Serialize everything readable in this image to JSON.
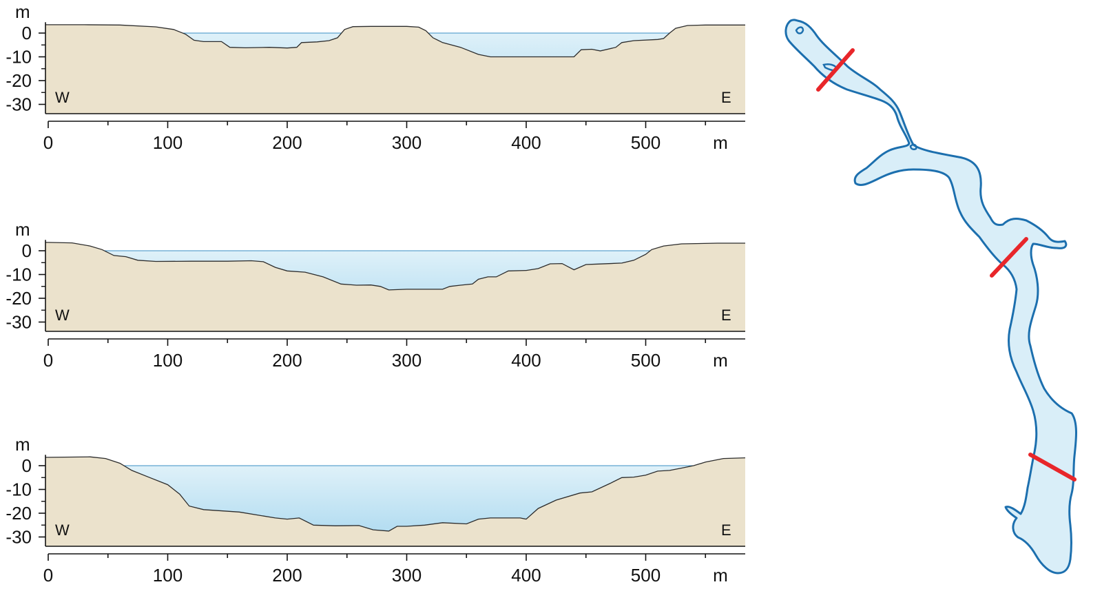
{
  "colors": {
    "land": "#ebe2cc",
    "water_top": "#dff1f9",
    "water_bottom": "#a9d8ef",
    "lake_outline": "#1c6fae",
    "transect": "#e8262a",
    "axis": "#111111"
  },
  "chart_data": [
    {
      "type": "area",
      "xlabel": "m",
      "ylabel": "m",
      "x_ticks": [
        "0",
        "100",
        "200",
        "300",
        "400",
        "500"
      ],
      "y_ticks": [
        "0",
        "-10",
        "-20",
        "-30"
      ],
      "xlim": [
        0,
        585
      ],
      "ylim": [
        -34,
        4
      ],
      "water_level": 0,
      "west_label": "W",
      "east_label": "E",
      "profile": [
        [
          0,
          3.5
        ],
        [
          30,
          3.5
        ],
        [
          60,
          3.4
        ],
        [
          90,
          2.6
        ],
        [
          105,
          1.5
        ],
        [
          115,
          -0.5
        ],
        [
          122,
          -3
        ],
        [
          130,
          -3.6
        ],
        [
          145,
          -3.6
        ],
        [
          152,
          -6
        ],
        [
          165,
          -6.2
        ],
        [
          185,
          -6
        ],
        [
          200,
          -6.3
        ],
        [
          208,
          -6
        ],
        [
          212,
          -4
        ],
        [
          225,
          -3.7
        ],
        [
          235,
          -3.2
        ],
        [
          242,
          -2
        ],
        [
          248,
          1.5
        ],
        [
          255,
          2.7
        ],
        [
          270,
          2.8
        ],
        [
          300,
          2.8
        ],
        [
          310,
          2.5
        ],
        [
          316,
          1
        ],
        [
          322,
          -2
        ],
        [
          330,
          -4
        ],
        [
          345,
          -6
        ],
        [
          360,
          -9
        ],
        [
          370,
          -10
        ],
        [
          400,
          -10
        ],
        [
          440,
          -10
        ],
        [
          446,
          -7
        ],
        [
          455,
          -6.8
        ],
        [
          462,
          -7.5
        ],
        [
          475,
          -6
        ],
        [
          480,
          -4
        ],
        [
          490,
          -3.2
        ],
        [
          510,
          -2.7
        ],
        [
          515,
          -2.3
        ],
        [
          520,
          0
        ],
        [
          525,
          2
        ],
        [
          535,
          3.2
        ],
        [
          550,
          3.4
        ],
        [
          585,
          3.4
        ]
      ]
    },
    {
      "type": "area",
      "xlabel": "m",
      "ylabel": "m",
      "x_ticks": [
        "0",
        "100",
        "200",
        "300",
        "400",
        "500"
      ],
      "y_ticks": [
        "0",
        "-10",
        "-20",
        "-30"
      ],
      "xlim": [
        0,
        585
      ],
      "ylim": [
        -34,
        4
      ],
      "water_level": 0,
      "west_label": "W",
      "east_label": "E",
      "profile": [
        [
          0,
          3.5
        ],
        [
          20,
          3.3
        ],
        [
          35,
          2
        ],
        [
          45,
          0.5
        ],
        [
          55,
          -2
        ],
        [
          65,
          -2.5
        ],
        [
          75,
          -4
        ],
        [
          90,
          -4.5
        ],
        [
          120,
          -4.4
        ],
        [
          150,
          -4.4
        ],
        [
          170,
          -4.2
        ],
        [
          180,
          -4.6
        ],
        [
          190,
          -7
        ],
        [
          200,
          -8.5
        ],
        [
          215,
          -9
        ],
        [
          230,
          -11
        ],
        [
          245,
          -14
        ],
        [
          258,
          -14.5
        ],
        [
          270,
          -14.4
        ],
        [
          278,
          -15
        ],
        [
          285,
          -16.5
        ],
        [
          300,
          -16.2
        ],
        [
          330,
          -16.2
        ],
        [
          336,
          -15
        ],
        [
          345,
          -14.5
        ],
        [
          355,
          -14
        ],
        [
          360,
          -12
        ],
        [
          368,
          -11
        ],
        [
          375,
          -11
        ],
        [
          385,
          -8.5
        ],
        [
          400,
          -8.3
        ],
        [
          410,
          -7.5
        ],
        [
          420,
          -5.5
        ],
        [
          430,
          -5.4
        ],
        [
          436,
          -7
        ],
        [
          440,
          -8
        ],
        [
          450,
          -5.8
        ],
        [
          460,
          -5.6
        ],
        [
          480,
          -5.2
        ],
        [
          490,
          -4
        ],
        [
          500,
          -1.5
        ],
        [
          505,
          0.5
        ],
        [
          515,
          2
        ],
        [
          530,
          2.9
        ],
        [
          560,
          3.2
        ],
        [
          585,
          3.2
        ]
      ]
    },
    {
      "type": "area",
      "xlabel": "m",
      "ylabel": "m",
      "x_ticks": [
        "0",
        "100",
        "200",
        "300",
        "400",
        "500"
      ],
      "y_ticks": [
        "0",
        "-10",
        "-20",
        "-30"
      ],
      "xlim": [
        0,
        585
      ],
      "ylim": [
        -34,
        4
      ],
      "water_level": 0,
      "west_label": "W",
      "east_label": "E",
      "profile": [
        [
          0,
          3.5
        ],
        [
          35,
          3.7
        ],
        [
          48,
          3
        ],
        [
          60,
          1
        ],
        [
          70,
          -2
        ],
        [
          85,
          -5
        ],
        [
          100,
          -8
        ],
        [
          110,
          -12
        ],
        [
          118,
          -17
        ],
        [
          130,
          -18.5
        ],
        [
          160,
          -19.5
        ],
        [
          190,
          -22
        ],
        [
          200,
          -22.5
        ],
        [
          210,
          -22
        ],
        [
          222,
          -25
        ],
        [
          240,
          -25.3
        ],
        [
          260,
          -25.2
        ],
        [
          272,
          -27
        ],
        [
          285,
          -27.5
        ],
        [
          292,
          -25.5
        ],
        [
          300,
          -25.5
        ],
        [
          315,
          -25
        ],
        [
          330,
          -24
        ],
        [
          350,
          -24.5
        ],
        [
          360,
          -22.5
        ],
        [
          370,
          -22
        ],
        [
          395,
          -22
        ],
        [
          400,
          -22.5
        ],
        [
          410,
          -18
        ],
        [
          425,
          -14.5
        ],
        [
          445,
          -11.5
        ],
        [
          455,
          -11
        ],
        [
          470,
          -7.5
        ],
        [
          480,
          -5
        ],
        [
          490,
          -4.8
        ],
        [
          500,
          -4
        ],
        [
          510,
          -2.3
        ],
        [
          520,
          -2
        ],
        [
          530,
          -1
        ],
        [
          540,
          0
        ],
        [
          550,
          1.5
        ],
        [
          565,
          3
        ],
        [
          585,
          3.3
        ]
      ]
    }
  ],
  "map": {
    "transect_count": 3
  }
}
